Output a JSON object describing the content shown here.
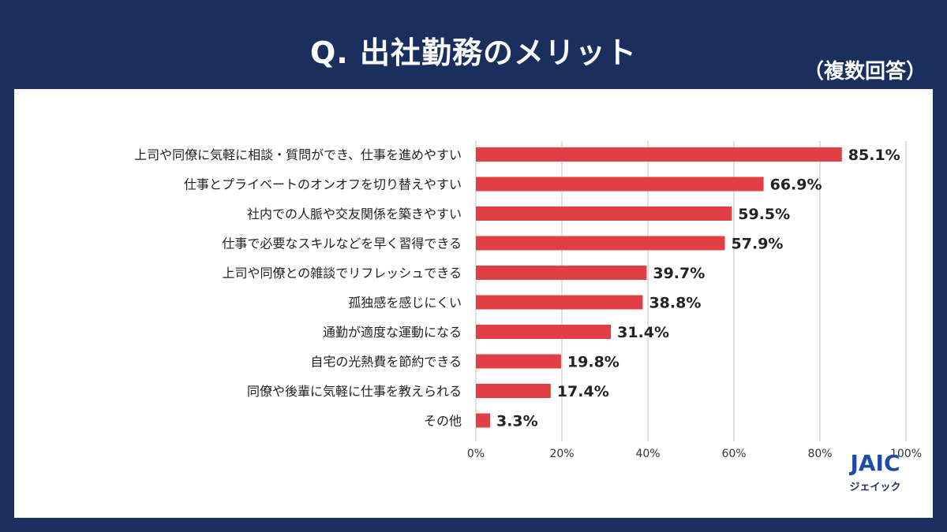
{
  "header": {
    "title": "Q. 出社勤務のメリット",
    "note": "（複数回答）"
  },
  "logo": {
    "main": "JAIC",
    "sub": "ジェイック"
  },
  "colors": {
    "background": "#1b2f5e",
    "panel": "#ffffff",
    "bar": "#e13e46",
    "grid": "#d6d6d6",
    "text": "#222222"
  },
  "chart_data": {
    "type": "bar",
    "orientation": "horizontal",
    "title": "Q. 出社勤務のメリット",
    "xlim": [
      0,
      100
    ],
    "ticks": [
      0,
      20,
      40,
      60,
      80,
      100
    ],
    "tick_labels": [
      "0%",
      "20%",
      "40%",
      "60%",
      "80%",
      "100%"
    ],
    "grid": true,
    "categories": [
      "上司や同僚に気軽に相談・質問ができ、仕事を進めやすい",
      "仕事とプライベートのオンオフを切り替えやすい",
      "社内での人脈や交友関係を築きやすい",
      "仕事で必要なスキルなどを早く習得できる",
      "上司や同僚との雑談でリフレッシュできる",
      "孤独感を感じにくい",
      "通勤が適度な運動になる",
      "自宅の光熱費を節約できる",
      "同僚や後輩に気軽に仕事を教えられる",
      "その他"
    ],
    "values": [
      85.1,
      66.9,
      59.5,
      57.9,
      39.7,
      38.8,
      31.4,
      19.8,
      17.4,
      3.3
    ],
    "value_labels": [
      "85.1%",
      "66.9%",
      "59.5%",
      "57.9%",
      "39.7%",
      "38.8%",
      "31.4%",
      "19.8%",
      "17.4%",
      "3.3%"
    ]
  }
}
